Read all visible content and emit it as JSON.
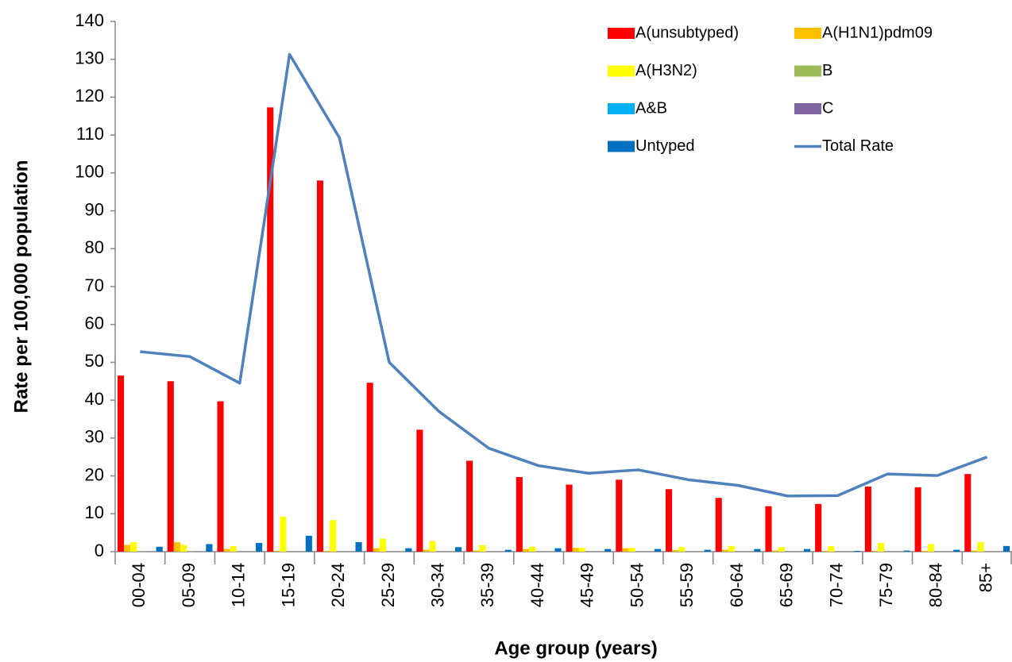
{
  "chart_data": {
    "type": "bar",
    "x_label": "Age group (years)",
    "y_label": "Rate per 100,000 population",
    "categories": [
      "00-04",
      "05-09",
      "10-14",
      "15-19",
      "20-24",
      "25-29",
      "30-34",
      "35-39",
      "40-44",
      "45-49",
      "50-54",
      "55-59",
      "60-64",
      "65-69",
      "70-74",
      "75-79",
      "80-84",
      "85+"
    ],
    "ylim": [
      0,
      140
    ],
    "yticks": [
      0,
      10,
      20,
      30,
      40,
      50,
      60,
      70,
      80,
      90,
      100,
      110,
      120,
      130,
      140
    ],
    "grid": false,
    "legend": "top-right",
    "series": [
      {
        "name": "A(unsubtyped)",
        "color": "#ff0000",
        "values": [
          46.5,
          45,
          39.7,
          117.3,
          98,
          44.6,
          32.2,
          24,
          19.7,
          17.7,
          19,
          16.5,
          14.2,
          12,
          12.6,
          17.2,
          17,
          20.5
        ]
      },
      {
        "name": "A(H1N1)pdm09",
        "color": "#ffc000",
        "values": [
          1.8,
          2.5,
          0.7,
          0.2,
          0.2,
          0.9,
          0.5,
          0.3,
          0.7,
          1.0,
          0.9,
          0.4,
          0.5,
          0.3,
          0.2,
          0.2,
          0.2,
          0.3
        ]
      },
      {
        "name": "A(H3N2)",
        "color": "#ffff00",
        "values": [
          2.5,
          1.8,
          1.5,
          9.2,
          8.3,
          3.4,
          2.8,
          1.7,
          1.3,
          1.0,
          1.0,
          1.2,
          1.5,
          1.2,
          1.5,
          2.3,
          2.0,
          2.5
        ]
      },
      {
        "name": "B",
        "color": "#9bbb59",
        "values": [
          0.1,
          0.1,
          0,
          0,
          0,
          0,
          0,
          0,
          0,
          0,
          0,
          0,
          0,
          0,
          0,
          0,
          0,
          0
        ]
      },
      {
        "name": "A&B",
        "color": "#00b0f0",
        "values": [
          0,
          0,
          0,
          0,
          0,
          0,
          0,
          0,
          0,
          0,
          0,
          0,
          0,
          0,
          0,
          0,
          0,
          0
        ]
      },
      {
        "name": "C",
        "color": "#8064a2",
        "values": [
          0,
          0,
          0,
          0,
          0,
          0,
          0,
          0,
          0,
          0,
          0,
          0,
          0,
          0,
          0,
          0,
          0,
          0
        ]
      },
      {
        "name": "Untyped",
        "color": "#0070c0",
        "values": [
          1.3,
          2.0,
          2.3,
          4.2,
          2.5,
          0.9,
          1.2,
          0.5,
          0.9,
          0.7,
          0.7,
          0.5,
          0.7,
          0.7,
          0.2,
          0.3,
          0.5,
          1.5
        ]
      },
      {
        "name": "Total Rate",
        "type": "line",
        "color": "#4f81bd",
        "values": [
          52.8,
          51.5,
          44.5,
          131.3,
          109.3,
          50,
          37,
          27.3,
          22.7,
          20.7,
          21.6,
          19,
          17.5,
          14.7,
          14.8,
          20.5,
          20.1,
          25
        ]
      }
    ]
  }
}
